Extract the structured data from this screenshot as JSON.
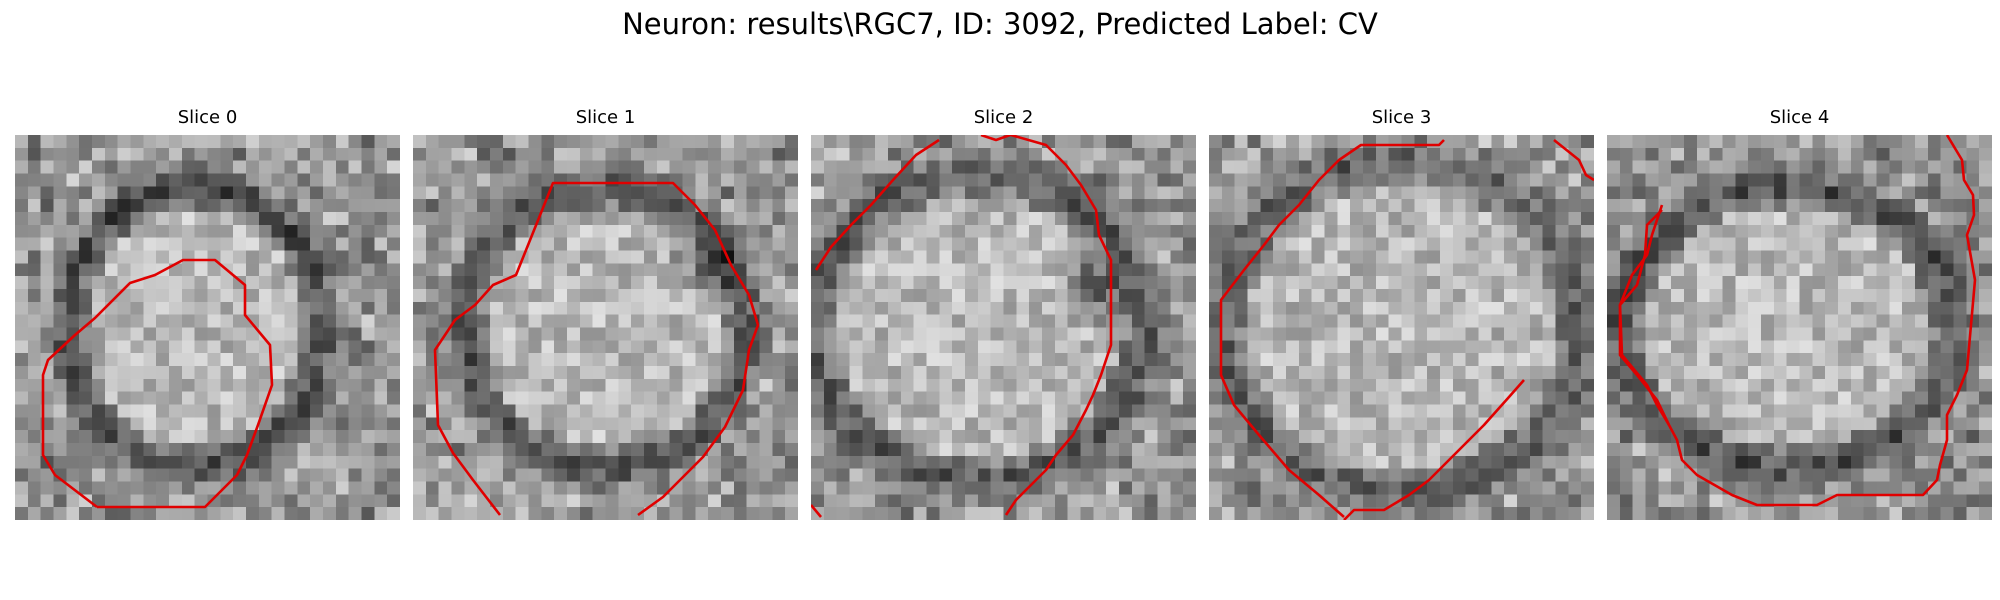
{
  "figure": {
    "title": "Neuron: results\\RGC7, ID: 3092, Predicted Label: CV",
    "contour_color": "#e00000"
  },
  "panels": [
    {
      "title": "Slice 0"
    },
    {
      "title": "Slice 1"
    },
    {
      "title": "Slice 2"
    },
    {
      "title": "Slice 3"
    },
    {
      "title": "Slice 4"
    }
  ]
}
